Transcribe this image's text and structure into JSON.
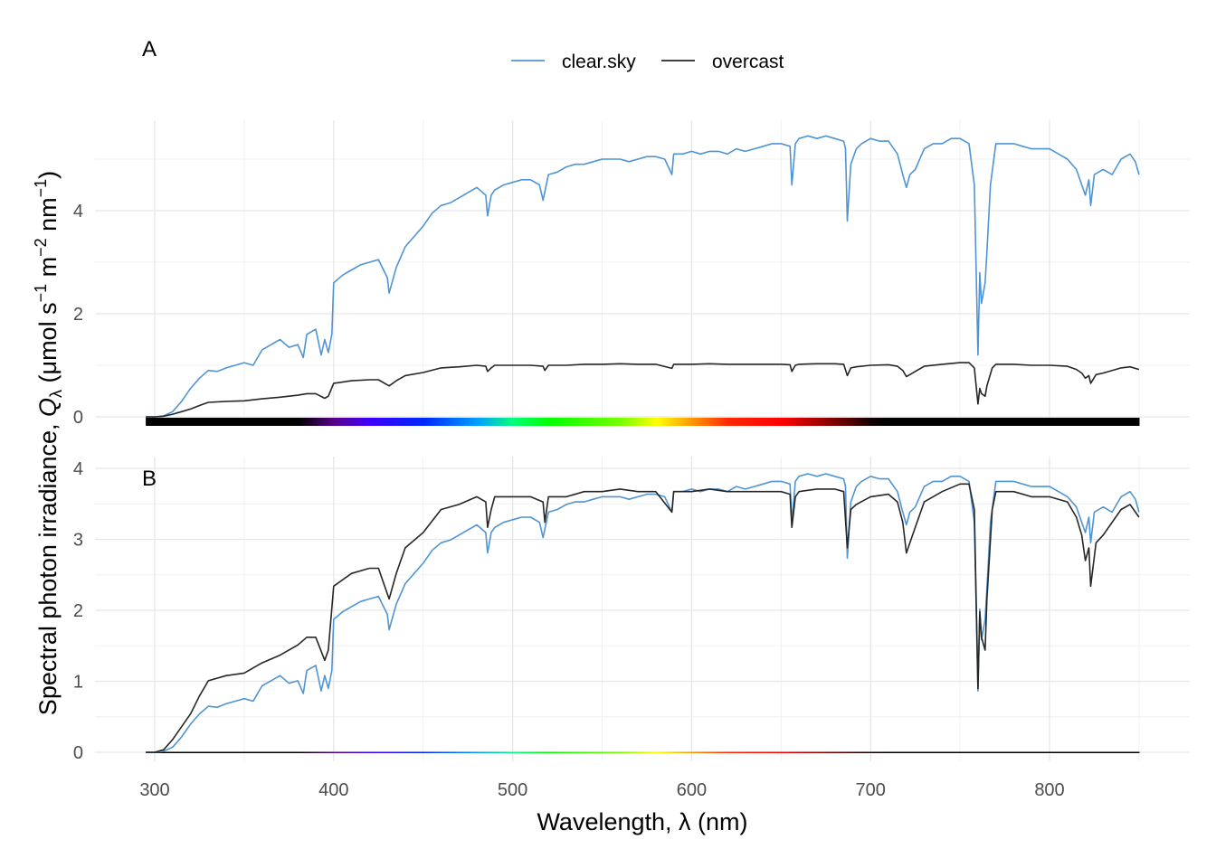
{
  "chart_data": {
    "type": "line",
    "panels": [
      {
        "tag": "A",
        "ylim": [
          0,
          5.7
        ],
        "yticks": [
          0,
          2,
          4
        ],
        "yminor": [
          1,
          3,
          5
        ],
        "scale": {
          "clear.sky": 1,
          "overcast": 1
        },
        "color_bar": "thick"
      },
      {
        "tag": "B",
        "ylim": [
          0,
          4.2
        ],
        "yticks": [
          0,
          1,
          2,
          3,
          4
        ],
        "yminor": [
          0.5,
          1.5,
          2.5,
          3.5
        ],
        "scale": {
          "clear.sky": 0.72,
          "overcast": 3.6
        },
        "color_bar": "thin"
      }
    ],
    "xlabel": "Wavelength,  λ (nm)",
    "ylabel_parts": {
      "main": "Spectral photon irradiance,  ",
      "sym": "Q",
      "sub": "λ",
      "units": " (μmol s",
      "e1": "−1",
      "m": " m",
      "e2": "−2",
      "nm": " nm",
      "e3": "−1",
      "close": ")"
    },
    "xlim": [
      295,
      850
    ],
    "xticks": [
      300,
      400,
      500,
      600,
      700,
      800
    ],
    "xminor": [
      350,
      450,
      550,
      650,
      750,
      850
    ],
    "legend": {
      "position": "top",
      "entries": [
        {
          "name": "clear.sky",
          "color": "#4f94d4"
        },
        {
          "name": "overcast",
          "color": "#262626"
        }
      ]
    },
    "series": [
      {
        "name": "clear.sky",
        "color": "#4f94d4",
        "x": [
          295,
          300,
          305,
          310,
          315,
          320,
          325,
          330,
          335,
          340,
          345,
          350,
          355,
          360,
          365,
          370,
          375,
          380,
          383,
          385,
          390,
          393,
          395,
          397,
          399,
          400,
          405,
          410,
          415,
          420,
          425,
          430,
          431,
          435,
          440,
          445,
          450,
          455,
          460,
          465,
          470,
          475,
          480,
          485,
          486,
          488,
          490,
          495,
          500,
          505,
          510,
          515,
          517,
          520,
          525,
          530,
          535,
          540,
          545,
          550,
          555,
          560,
          565,
          570,
          575,
          580,
          585,
          589,
          590,
          595,
          600,
          605,
          610,
          615,
          620,
          625,
          630,
          635,
          640,
          645,
          650,
          655,
          656,
          658,
          660,
          665,
          670,
          675,
          680,
          685,
          686,
          687,
          689,
          692,
          695,
          700,
          705,
          710,
          715,
          718,
          720,
          722,
          725,
          730,
          735,
          740,
          745,
          750,
          755,
          758,
          760,
          761,
          762,
          764,
          765,
          767,
          770,
          775,
          780,
          785,
          790,
          795,
          800,
          805,
          810,
          815,
          818,
          820,
          822,
          823,
          825,
          830,
          835,
          840,
          845,
          848,
          850
        ],
        "y": [
          0,
          0,
          0.02,
          0.1,
          0.3,
          0.55,
          0.75,
          0.9,
          0.88,
          0.95,
          1.0,
          1.05,
          1.0,
          1.3,
          1.4,
          1.5,
          1.35,
          1.4,
          1.15,
          1.6,
          1.7,
          1.2,
          1.5,
          1.25,
          1.6,
          2.6,
          2.75,
          2.85,
          2.95,
          3.0,
          3.05,
          2.7,
          2.4,
          2.9,
          3.3,
          3.5,
          3.7,
          3.95,
          4.1,
          4.15,
          4.25,
          4.35,
          4.45,
          4.3,
          3.9,
          4.3,
          4.4,
          4.5,
          4.55,
          4.6,
          4.6,
          4.5,
          4.2,
          4.7,
          4.75,
          4.85,
          4.9,
          4.9,
          4.95,
          5.0,
          5.0,
          5.0,
          4.95,
          5.0,
          5.05,
          5.05,
          5.0,
          4.7,
          5.1,
          5.1,
          5.15,
          5.1,
          5.15,
          5.15,
          5.1,
          5.2,
          5.15,
          5.2,
          5.25,
          5.3,
          5.3,
          5.25,
          4.5,
          5.3,
          5.4,
          5.45,
          5.4,
          5.45,
          5.4,
          5.35,
          5.2,
          3.8,
          4.9,
          5.2,
          5.3,
          5.4,
          5.35,
          5.35,
          5.1,
          4.7,
          4.45,
          4.7,
          4.8,
          5.2,
          5.3,
          5.3,
          5.4,
          5.4,
          5.3,
          4.5,
          1.2,
          2.8,
          2.2,
          2.6,
          3.2,
          4.5,
          5.3,
          5.3,
          5.3,
          5.25,
          5.2,
          5.2,
          5.2,
          5.1,
          5.0,
          4.8,
          4.5,
          4.3,
          4.6,
          4.1,
          4.7,
          4.8,
          4.7,
          5.0,
          5.1,
          4.95,
          4.7
        ]
      },
      {
        "name": "overcast",
        "color": "#262626",
        "x": [
          295,
          300,
          305,
          310,
          315,
          320,
          325,
          330,
          340,
          350,
          360,
          370,
          380,
          385,
          390,
          395,
          397,
          400,
          410,
          420,
          425,
          430,
          431,
          435,
          440,
          450,
          460,
          470,
          480,
          485,
          486,
          488,
          490,
          500,
          510,
          517,
          518,
          520,
          530,
          540,
          550,
          560,
          570,
          580,
          589,
          590,
          600,
          610,
          620,
          630,
          640,
          650,
          655,
          656,
          658,
          660,
          670,
          680,
          685,
          687,
          689,
          692,
          700,
          710,
          715,
          718,
          720,
          722,
          725,
          730,
          740,
          750,
          755,
          758,
          760,
          761,
          762,
          764,
          765,
          768,
          770,
          780,
          790,
          800,
          810,
          815,
          818,
          820,
          822,
          823,
          826,
          830,
          840,
          845,
          850
        ],
        "y": [
          0,
          0,
          0.01,
          0.05,
          0.1,
          0.15,
          0.22,
          0.28,
          0.3,
          0.31,
          0.35,
          0.38,
          0.42,
          0.45,
          0.45,
          0.36,
          0.4,
          0.65,
          0.7,
          0.72,
          0.72,
          0.62,
          0.6,
          0.7,
          0.8,
          0.86,
          0.95,
          0.97,
          1.0,
          0.98,
          0.88,
          0.95,
          1.0,
          1.0,
          1.0,
          0.98,
          0.9,
          1.0,
          1.0,
          1.02,
          1.02,
          1.03,
          1.02,
          1.02,
          0.94,
          1.02,
          1.02,
          1.03,
          1.02,
          1.02,
          1.02,
          1.02,
          1.01,
          0.88,
          1.0,
          1.02,
          1.03,
          1.03,
          1.02,
          0.8,
          0.95,
          0.97,
          1.0,
          1.01,
          0.98,
          0.9,
          0.78,
          0.82,
          0.88,
          0.98,
          1.02,
          1.05,
          1.05,
          0.95,
          0.25,
          0.55,
          0.45,
          0.4,
          0.6,
          0.95,
          1.02,
          1.02,
          1.0,
          1.0,
          0.98,
          0.92,
          0.85,
          0.75,
          0.8,
          0.65,
          0.82,
          0.85,
          0.95,
          0.97,
          0.92
        ]
      }
    ]
  }
}
